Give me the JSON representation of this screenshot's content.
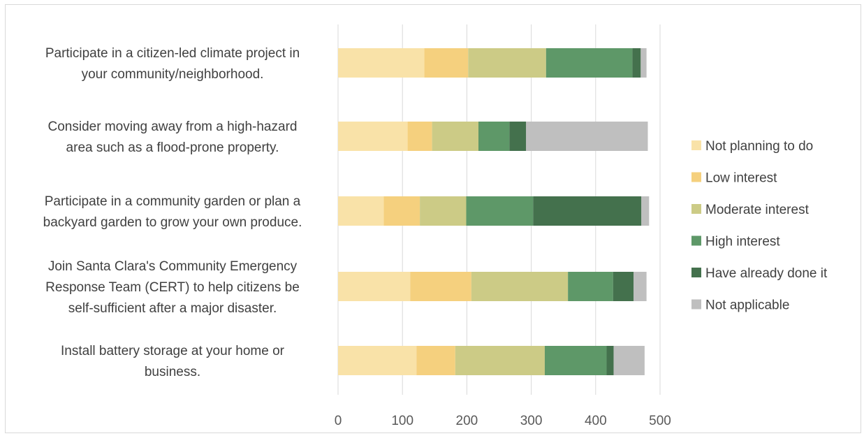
{
  "chart_data": {
    "type": "bar",
    "orientation": "horizontal",
    "stacked": true,
    "categories": [
      [
        "Participate in a citizen-led climate project in",
        "your community/neighborhood."
      ],
      [
        "Consider moving away from a high-hazard",
        "area such as a flood-prone property."
      ],
      [
        "Participate in a community garden or plan a",
        "backyard garden to grow your own produce."
      ],
      [
        "Join Santa Clara's Community Emergency",
        "Response Team (CERT) to help citizens be",
        "self-sufficient after a major disaster."
      ],
      [
        "Install battery storage at your home or",
        "business."
      ]
    ],
    "series": [
      {
        "name": "Not planning to do",
        "color": "#f9e2a8",
        "values": [
          134,
          108,
          71,
          112,
          122
        ]
      },
      {
        "name": "Low interest",
        "color": "#f5d07e",
        "values": [
          68,
          38,
          56,
          95,
          60
        ]
      },
      {
        "name": "Moderate interest",
        "color": "#cccb86",
        "values": [
          121,
          72,
          72,
          150,
          139
        ]
      },
      {
        "name": "High interest",
        "color": "#5e9868",
        "values": [
          134,
          48,
          104,
          70,
          96
        ]
      },
      {
        "name": "Have already done it",
        "color": "#44714d",
        "values": [
          13,
          26,
          168,
          32,
          11
        ]
      },
      {
        "name": "Not applicable",
        "color": "#bfbfbf",
        "values": [
          9,
          189,
          12,
          20,
          48
        ]
      }
    ],
    "xlim": [
      0,
      500
    ],
    "xticks": [
      0,
      100,
      200,
      300,
      400,
      500
    ],
    "grid": true,
    "legend_position": "right",
    "title": "",
    "xlabel": "",
    "ylabel": ""
  }
}
